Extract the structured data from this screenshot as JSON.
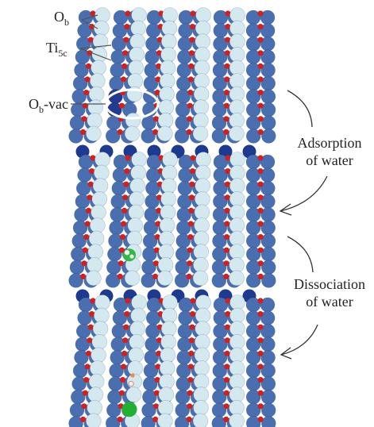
{
  "labels": {
    "ob": {
      "base": "O",
      "sub": "b"
    },
    "ti5c": {
      "base": "Ti",
      "sub": "5c"
    },
    "ob_vac": {
      "base": "O",
      "sub": "b",
      "suffix": "-vac"
    }
  },
  "steps": [
    {
      "line1": "Adsorption",
      "line2": "of water"
    },
    {
      "line1": "Dissociation",
      "line2": "of water"
    }
  ],
  "colors": {
    "background": "#ffffff",
    "ti_atom": "#4a6fb0",
    "bridging_o": "#d4e8f0",
    "in_plane_o": "#cc2222",
    "deep_atom": "#1e3a8f",
    "vacancy_atom": "#243a90",
    "water_o": "#33b844",
    "hydroxyl_o": "#22b033",
    "hydrogen": "#f0f0f0",
    "vacancy_ring": "#ffffff",
    "leader_line": "#555555",
    "arrow": "#333333"
  }
}
